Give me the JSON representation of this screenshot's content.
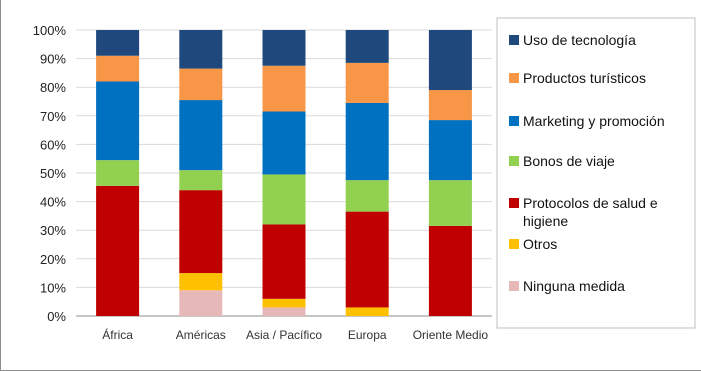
{
  "chart_data": {
    "type": "bar",
    "stacked": true,
    "title": "",
    "xlabel": "",
    "ylabel": "",
    "ylim": [
      0,
      100
    ],
    "y_ticks": [
      "0%",
      "10%",
      "20%",
      "30%",
      "40%",
      "50%",
      "60%",
      "70%",
      "80%",
      "90%",
      "100%"
    ],
    "grid": true,
    "legend_position": "right",
    "categories": [
      "África",
      "Américas",
      "Asia / Pacífico",
      "Europa",
      "Oriente Medio"
    ],
    "series": [
      {
        "name": "Ninguna medida",
        "color": "#e6b8b7",
        "values": [
          0,
          9,
          3,
          0,
          0
        ]
      },
      {
        "name": "Otros",
        "color": "#ffc000",
        "values": [
          0,
          6,
          3,
          3,
          0
        ]
      },
      {
        "name": "Protocolos de salud e higiene",
        "color": "#c00000",
        "values": [
          45.5,
          29,
          26,
          33.5,
          31.5
        ]
      },
      {
        "name": "Bonos de viaje",
        "color": "#92d050",
        "values": [
          9,
          7,
          17.5,
          11,
          16
        ]
      },
      {
        "name": "Marketing y promoción",
        "color": "#0070c0",
        "values": [
          27.5,
          24.5,
          22,
          27,
          21
        ]
      },
      {
        "name": "Productos turísticos",
        "color": "#f79646",
        "values": [
          9,
          11,
          16,
          14,
          10.5
        ]
      },
      {
        "name": "Uso de tecnología",
        "color": "#1f497d",
        "values": [
          9,
          13.5,
          12.5,
          11.5,
          21
        ]
      }
    ],
    "legend_order": [
      "Uso de tecnología",
      "Productos turísticos",
      "Marketing y promoción",
      "Bonos de viaje",
      "Protocolos de salud e higiene",
      "Otros",
      "Ninguna medida"
    ],
    "legend_lines": [
      [
        "Uso de tecnología"
      ],
      [
        "Productos turísticos"
      ],
      [
        "Marketing y promoción"
      ],
      [
        "Bonos de viaje"
      ],
      [
        "Protocolos de salud e",
        "higiene"
      ],
      [
        "Otros"
      ],
      [
        "Ninguna medida"
      ]
    ]
  }
}
